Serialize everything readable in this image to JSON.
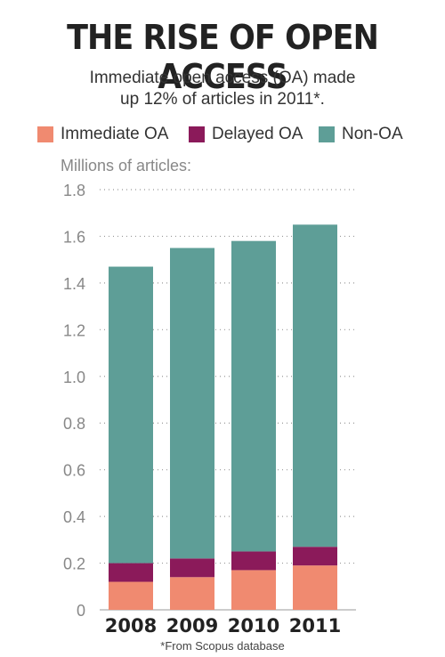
{
  "title": "THE RISE OF OPEN ACCESS",
  "subtitle_line1": "Immediate open access (OA) made",
  "subtitle_line2": "up 12% of articles in 2011*.",
  "footnote": "*From Scopus database",
  "chart_data": {
    "type": "bar",
    "stacked": true,
    "ylabel": "Millions of articles:",
    "categories": [
      "2008",
      "2009",
      "2010",
      "2011"
    ],
    "series": [
      {
        "name": "Immediate OA",
        "color": "#f08a70",
        "values": [
          0.12,
          0.14,
          0.17,
          0.19
        ]
      },
      {
        "name": "Delayed OA",
        "color": "#8b1a5a",
        "values": [
          0.08,
          0.08,
          0.08,
          0.08
        ]
      },
      {
        "name": "Non-OA",
        "color": "#5e9e97",
        "values": [
          1.27,
          1.33,
          1.33,
          1.38
        ]
      }
    ],
    "ylim": [
      0,
      1.8
    ],
    "yticks": [
      "0",
      "0.2",
      "0.4",
      "0.6",
      "0.8",
      "1.0",
      "1.2",
      "1.4",
      "1.6",
      "1.8"
    ],
    "grid": "dotted",
    "legend_position": "top"
  }
}
